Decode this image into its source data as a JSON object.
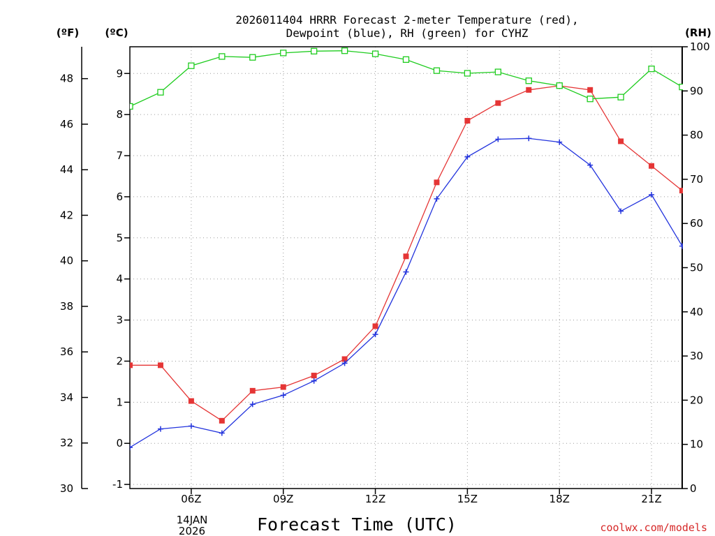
{
  "chart_data": {
    "type": "line",
    "title_line1": "2026011404 HRRR Forecast 2-meter Temperature (red),",
    "title_line2": "Dewpoint (blue), RH (green) for CYHZ",
    "xlabel": "Forecast Time (UTC)",
    "credit": "coolwx.com/models",
    "units": {
      "fahrenheit": "(ºF)",
      "celsius": "(ºC)",
      "rh": "(RH)"
    },
    "date_label_day": "14JAN",
    "date_label_year": "2026",
    "x_hours": [
      4,
      5,
      6,
      7,
      8,
      9,
      10,
      11,
      12,
      13,
      14,
      15,
      16,
      17,
      18,
      19,
      20,
      21,
      22
    ],
    "x_ticks": [
      {
        "hour": 6,
        "label": "06Z"
      },
      {
        "hour": 9,
        "label": "09Z"
      },
      {
        "hour": 12,
        "label": "12Z"
      },
      {
        "hour": 15,
        "label": "15Z"
      },
      {
        "hour": 18,
        "label": "18Z"
      },
      {
        "hour": 21,
        "label": "21Z"
      }
    ],
    "xlim": [
      4,
      22
    ],
    "ylim_c": [
      -1.1,
      9.65
    ],
    "ylim_f": [
      30.0,
      49.4
    ],
    "ylim_rh": [
      0,
      100
    ],
    "celsius_ticks": [
      "-1",
      "0",
      "1",
      "2",
      "3",
      "4",
      "5",
      "6",
      "7",
      "8",
      "9"
    ],
    "fahrenheit_ticks": [
      "30",
      "32",
      "34",
      "36",
      "38",
      "40",
      "42",
      "44",
      "46",
      "48"
    ],
    "rh_ticks": [
      "0",
      "10",
      "20",
      "30",
      "40",
      "50",
      "60",
      "70",
      "80",
      "90",
      "100"
    ],
    "series": [
      {
        "name": "Temperature",
        "color": "#e53535",
        "marker": "filled-square",
        "axis": "celsius",
        "values": [
          1.9,
          1.9,
          1.03,
          0.55,
          1.28,
          1.37,
          1.65,
          2.05,
          2.85,
          4.55,
          6.35,
          7.85,
          8.28,
          8.6,
          8.7,
          8.6,
          7.35,
          6.75,
          6.15
        ]
      },
      {
        "name": "Dewpoint",
        "color": "#2233dd",
        "marker": "plus",
        "axis": "celsius",
        "values": [
          -0.1,
          0.35,
          0.42,
          0.25,
          0.95,
          1.17,
          1.52,
          1.95,
          2.65,
          4.17,
          5.95,
          6.97,
          7.4,
          7.42,
          7.33,
          6.77,
          5.65,
          6.05,
          4.8
        ]
      },
      {
        "name": "RH",
        "color": "#1ecc1e",
        "marker": "open-square",
        "axis": "rh",
        "values": [
          86.5,
          89.7,
          95.7,
          97.8,
          97.6,
          98.6,
          99.0,
          99.1,
          98.4,
          97.1,
          94.6,
          94.0,
          94.3,
          92.3,
          91.2,
          88.2,
          88.6,
          95.0,
          90.9
        ]
      }
    ]
  }
}
